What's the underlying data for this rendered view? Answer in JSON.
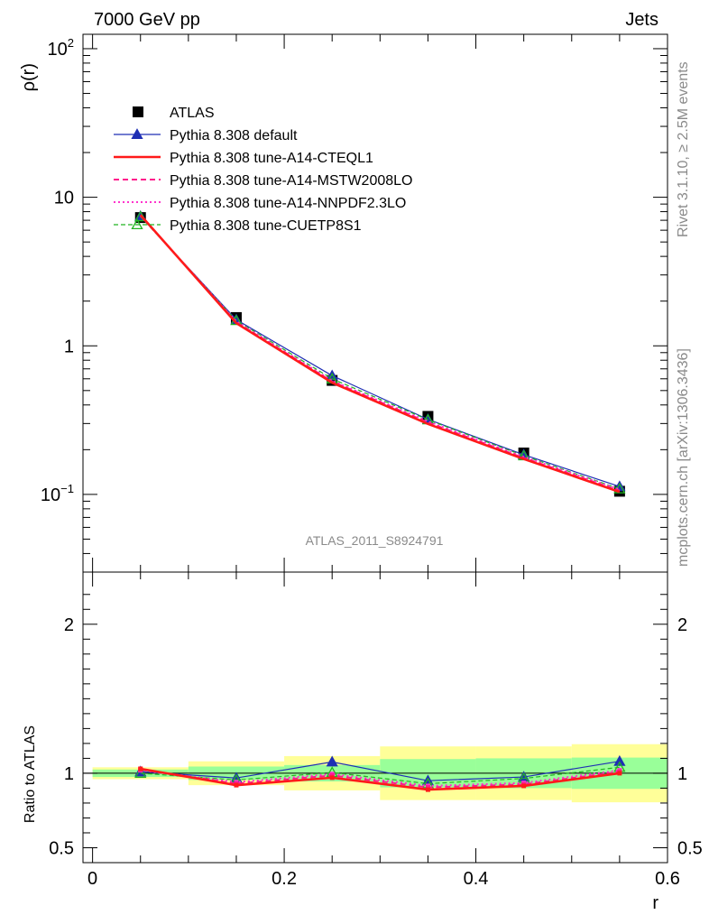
{
  "header": {
    "left": "7000 GeV pp",
    "right": "Jets"
  },
  "side_text": {
    "rivet": "Rivet 3.1.10, ≥ 2.5M events",
    "site": "mcplots.cern.ch [arXiv:1306.3436]"
  },
  "analysis_label": "ATLAS_2011_S8924791",
  "chart_data": [
    {
      "type": "line",
      "panel": "main",
      "ylabel": "ρ(r)",
      "yscale": "log",
      "ylim": [
        0.03,
        125
      ],
      "xlim": [
        -0.01,
        0.6
      ],
      "y_ticks": [
        {
          "v": 0.1,
          "base": "10",
          "exp": "−1"
        },
        {
          "v": 1,
          "base": "1",
          "exp": ""
        },
        {
          "v": 10,
          "base": "10",
          "exp": ""
        },
        {
          "v": 100,
          "base": "10",
          "exp": "2"
        }
      ],
      "x": [
        0.05,
        0.15,
        0.25,
        0.35,
        0.45,
        0.55
      ],
      "legend_position": "top-left",
      "series": [
        {
          "name": "ATLAS",
          "color": "#000000",
          "style": "data",
          "values": [
            7.3,
            1.55,
            0.585,
            0.335,
            0.19,
            0.105
          ]
        },
        {
          "name": "Pythia 8.308 default",
          "color": "#1f2fb4",
          "style": "solid-thin",
          "marker": "triangle-filled",
          "values": [
            7.45,
            1.5,
            0.63,
            0.32,
            0.185,
            0.113
          ]
        },
        {
          "name": "Pythia 8.308 tune-A14-CTEQL1",
          "color": "#ff1a1a",
          "style": "solid-thick",
          "values": [
            7.6,
            1.42,
            0.565,
            0.298,
            0.173,
            0.104
          ]
        },
        {
          "name": "Pythia 8.308 tune-A14-MSTW2008LO",
          "color": "#ff1a8c",
          "style": "dashed",
          "values": [
            7.55,
            1.44,
            0.575,
            0.305,
            0.176,
            0.106
          ]
        },
        {
          "name": "Pythia 8.308 tune-A14-NNPDF2.3LO",
          "color": "#ff33cc",
          "style": "dotted",
          "values": [
            7.5,
            1.46,
            0.582,
            0.31,
            0.179,
            0.108
          ]
        },
        {
          "name": "Pythia 8.308 tune-CUETP8S1",
          "color": "#22b522",
          "style": "dashed-thin",
          "marker": "triangle-open",
          "values": [
            7.4,
            1.48,
            0.6,
            0.318,
            0.182,
            0.109
          ]
        }
      ]
    },
    {
      "type": "line",
      "panel": "ratio",
      "ylabel": "Ratio to ATLAS",
      "xlabel": "r",
      "ylim": [
        0.4,
        2.35
      ],
      "xlim": [
        -0.01,
        0.6
      ],
      "y_ticks": [
        0.5,
        1,
        2
      ],
      "y_tick_labels": [
        "0.5",
        "1",
        "2"
      ],
      "x_ticks": [
        0,
        0.2,
        0.4,
        0.6
      ],
      "x_tick_labels": [
        "0",
        "0.2",
        "0.4",
        "0.6"
      ],
      "bands": {
        "bins": [
          [
            0,
            0.1
          ],
          [
            0.1,
            0.2
          ],
          [
            0.2,
            0.3
          ],
          [
            0.3,
            0.4
          ],
          [
            0.4,
            0.5
          ],
          [
            0.5,
            0.6
          ]
        ],
        "stat": [
          [
            0.975,
            1.025
          ],
          [
            0.955,
            1.045
          ],
          [
            0.945,
            1.055
          ],
          [
            0.905,
            1.095
          ],
          [
            0.9,
            1.1
          ],
          [
            0.895,
            1.105
          ]
        ],
        "total": [
          [
            0.96,
            1.04
          ],
          [
            0.92,
            1.08
          ],
          [
            0.885,
            1.115
          ],
          [
            0.82,
            1.18
          ],
          [
            0.82,
            1.18
          ],
          [
            0.805,
            1.195
          ]
        ],
        "stat_color": "#99ff99",
        "total_color": "#ffff99"
      },
      "series": [
        {
          "name": "Pythia 8.308 default",
          "color": "#1f2fb4",
          "values": [
            1.01,
            0.968,
            1.076,
            0.95,
            0.975,
            1.08
          ]
        },
        {
          "name": "Pythia 8.308 tune-A14-CTEQL1",
          "color": "#ff1a1a",
          "values": [
            1.03,
            0.92,
            0.97,
            0.89,
            0.915,
            1.0
          ]
        },
        {
          "name": "Pythia 8.308 tune-A14-MSTW2008LO",
          "color": "#ff1a8c",
          "values": [
            1.025,
            0.93,
            0.985,
            0.905,
            0.925,
            1.01
          ]
        },
        {
          "name": "Pythia 8.308 tune-A14-NNPDF2.3LO",
          "color": "#ff33cc",
          "values": [
            1.02,
            0.94,
            0.995,
            0.915,
            0.935,
            1.02
          ]
        },
        {
          "name": "Pythia 8.308 tune-CUETP8S1",
          "color": "#22b522",
          "values": [
            1.0,
            0.955,
            1.005,
            0.93,
            0.965,
            1.04
          ]
        }
      ]
    }
  ]
}
